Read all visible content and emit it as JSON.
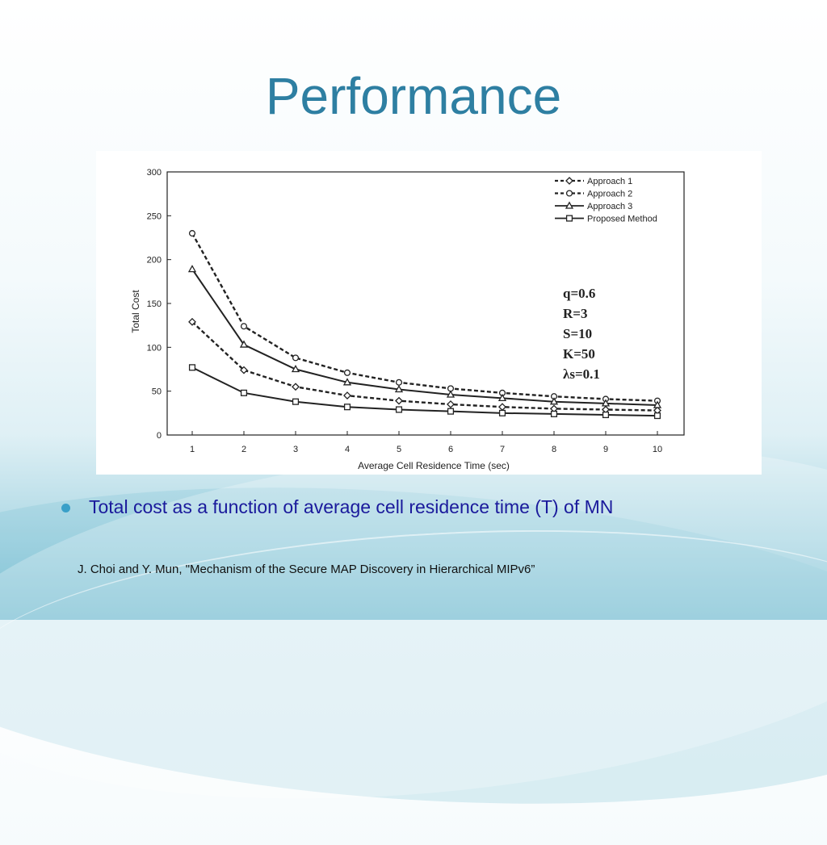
{
  "slide": {
    "title": "Performance",
    "bullet": "Total cost as a function of average cell residence time (T) of MN",
    "citation": "J. Choi and Y. Mun, \"Mechanism of the Secure MAP Discovery in Hierarchical MIPv6”"
  },
  "colors": {
    "title": "#2e7fa2",
    "bullet_text": "#1a1a9c",
    "bullet_dot": "#3aa0c8",
    "plot": "#222222"
  },
  "chart_data": {
    "type": "line",
    "x": [
      1,
      2,
      3,
      4,
      5,
      6,
      7,
      8,
      9,
      10
    ],
    "xlabel": "Average Cell Residence Time (sec)",
    "ylabel": "Total Cost",
    "xlim": [
      1,
      10
    ],
    "ylim": [
      0,
      300
    ],
    "yticks": [
      0,
      50,
      100,
      150,
      200,
      250,
      300
    ],
    "grid": false,
    "legend_position": "top-right",
    "series": [
      {
        "name": "Approach 1",
        "line": "dashed",
        "marker": "diamond",
        "values": [
          129,
          74,
          55,
          45,
          39,
          35,
          32,
          30,
          29,
          28
        ]
      },
      {
        "name": "Approach 2",
        "line": "dashed",
        "marker": "circle",
        "values": [
          230,
          124,
          88,
          71,
          60,
          53,
          48,
          44,
          41,
          39
        ]
      },
      {
        "name": "Approach 3",
        "line": "solid",
        "marker": "triangle",
        "values": [
          189,
          103,
          75,
          60,
          52,
          46,
          42,
          38,
          36,
          34
        ]
      },
      {
        "name": "Proposed Method",
        "line": "solid",
        "marker": "square",
        "values": [
          77,
          48,
          38,
          32,
          29,
          27,
          25,
          24,
          23,
          22
        ]
      }
    ],
    "annotations": [
      "q=0.6",
      "R=3",
      "S=10",
      "K=50",
      "λs=0.1"
    ]
  }
}
